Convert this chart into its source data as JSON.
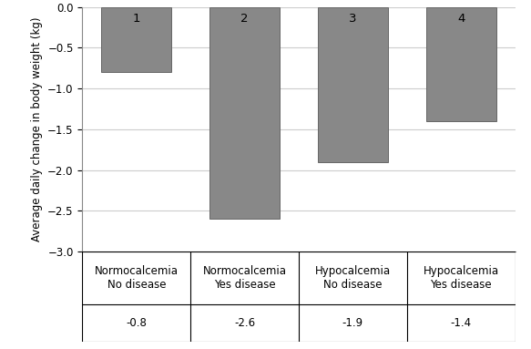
{
  "categories": [
    "Normocalcemia\nNo disease",
    "Normocalcemia\nYes disease",
    "Hypocalcemia\nNo disease",
    "Hypocalcemia\nYes disease"
  ],
  "values": [
    -0.8,
    -2.6,
    -1.9,
    -1.4
  ],
  "table_values": [
    "-0.8",
    "-2.6",
    "-1.9",
    "-1.4"
  ],
  "bar_labels": [
    "1",
    "2",
    "3",
    "4"
  ],
  "bar_color": "#888888",
  "bar_edge_color": "#666666",
  "ylabel": "Average daily change in body weight (kg)",
  "ylim": [
    -3.0,
    0.0
  ],
  "yticks": [
    0,
    -0.5,
    -1.0,
    -1.5,
    -2.0,
    -2.5,
    -3.0
  ],
  "background_color": "#ffffff",
  "label_fontsize": 8.5,
  "tick_fontsize": 8.5,
  "bar_label_fontsize": 9.5,
  "bar_width": 0.65,
  "grid_color": "#cccccc",
  "table_line_color": "#aaaaaa"
}
